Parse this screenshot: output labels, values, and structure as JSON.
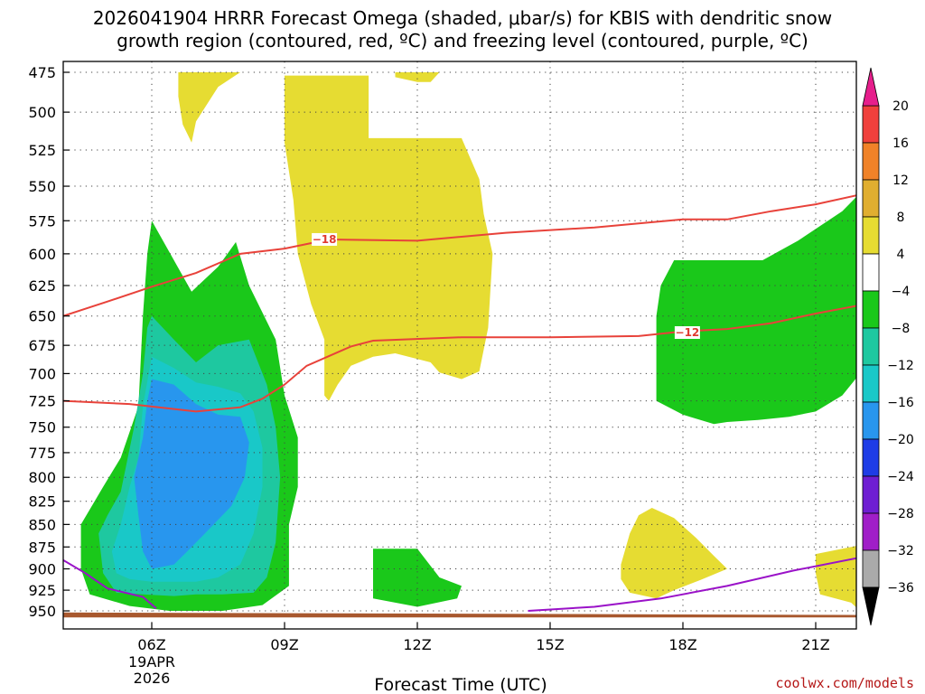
{
  "chart_data": {
    "type": "heatmap",
    "title_lines": [
      "2026041904 HRRR Forecast Omega (shaded, μbar/s) for KBIS with dendritic snow",
      "growth region (contoured, red, ºC) and freezing level (contoured, purple, ºC)"
    ],
    "xlabel": "Forecast Time (UTC)",
    "ylabel": "",
    "credit": "coolwx.com/models",
    "x_ticks": [
      {
        "label": "06Z",
        "hour": 6,
        "sub": [
          "19APR",
          "2026"
        ]
      },
      {
        "label": "09Z",
        "hour": 9
      },
      {
        "label": "12Z",
        "hour": 12
      },
      {
        "label": "15Z",
        "hour": 15
      },
      {
        "label": "18Z",
        "hour": 18
      },
      {
        "label": "21Z",
        "hour": 21
      }
    ],
    "xlim": [
      4,
      22
    ],
    "y_ticks": [
      475,
      500,
      525,
      550,
      575,
      600,
      625,
      650,
      675,
      700,
      725,
      750,
      775,
      800,
      825,
      850,
      875,
      900,
      925,
      950
    ],
    "colorbar": {
      "labels": [
        "20",
        "16",
        "12",
        "8",
        "4",
        "−4",
        "−8",
        "−12",
        "−16",
        "−20",
        "−24",
        "−28",
        "−32",
        "−36"
      ],
      "colors": [
        "#f0403c",
        "#f08228",
        "#e0ae30",
        "#e6dc32",
        "#ffffff",
        "#1ac81a",
        "#1ec8a0",
        "#19c8c8",
        "#2896ee",
        "#1e3ce6",
        "#6e1ed2",
        "#a01ec8",
        "#aaaaaa"
      ],
      "top_color": "#e61e8c",
      "bottom_color": "#000000"
    },
    "contours": {
      "dendritic": [
        {
          "label": "−18",
          "color": "#e8423a",
          "points": [
            [
              4.0,
              650
            ],
            [
              5.0,
              638
            ],
            [
              6.0,
              626
            ],
            [
              7.0,
              615
            ],
            [
              8.0,
              600
            ],
            [
              9.0,
              596
            ],
            [
              10.0,
              589
            ],
            [
              12.0,
              590
            ],
            [
              14.0,
              584
            ],
            [
              16.0,
              580
            ],
            [
              18.0,
              574
            ],
            [
              19.0,
              574
            ],
            [
              20.0,
              568
            ],
            [
              21.0,
              563
            ],
            [
              22.0,
              556
            ]
          ]
        },
        {
          "label": "−12",
          "color": "#e8423a",
          "points": [
            [
              4.0,
              725
            ],
            [
              5.5,
              728
            ],
            [
              7.0,
              735
            ],
            [
              8.0,
              731
            ],
            [
              8.5,
              723
            ],
            [
              9.0,
              710
            ],
            [
              9.5,
              693
            ],
            [
              10.5,
              676
            ],
            [
              11.0,
              671
            ],
            [
              13.0,
              668
            ],
            [
              15.0,
              668
            ],
            [
              17.0,
              667
            ],
            [
              18.0,
              663
            ],
            [
              19.0,
              661
            ],
            [
              20.0,
              656
            ],
            [
              21.0,
              648
            ],
            [
              22.0,
              641
            ]
          ]
        }
      ],
      "freezing": {
        "color": "#9a12c8",
        "segments": [
          [
            [
              4.0,
              890
            ],
            [
              4.5,
              905
            ],
            [
              5.0,
              923
            ],
            [
              5.8,
              933
            ],
            [
              6.1,
              947
            ]
          ],
          [
            [
              14.5,
              950
            ],
            [
              16.0,
              945
            ],
            [
              17.5,
              935
            ],
            [
              19.0,
              920
            ],
            [
              20.5,
              902
            ],
            [
              22.0,
              887
            ]
          ]
        ]
      }
    },
    "shaded_regions": [
      {
        "value": "4",
        "color": "#e6dc32",
        "points": [
          [
            6.6,
            475
          ],
          [
            8.0,
            475
          ],
          [
            7.5,
            484
          ],
          [
            7.0,
            506
          ],
          [
            6.9,
            520
          ],
          [
            6.7,
            508
          ],
          [
            6.6,
            490
          ]
        ]
      },
      {
        "value": "4",
        "color": "#e6dc32",
        "points": [
          [
            9.0,
            477
          ],
          [
            10.9,
            477
          ],
          [
            10.9,
            517
          ],
          [
            13.0,
            517
          ],
          [
            13.4,
            545
          ],
          [
            13.5,
            570
          ],
          [
            13.7,
            600
          ],
          [
            13.6,
            660
          ],
          [
            13.4,
            698
          ],
          [
            13.0,
            705
          ],
          [
            12.5,
            699
          ],
          [
            12.3,
            690
          ],
          [
            11.8,
            685
          ],
          [
            11.5,
            682
          ],
          [
            11.0,
            685
          ],
          [
            10.5,
            693
          ],
          [
            10.2,
            710
          ],
          [
            10.0,
            725
          ],
          [
            9.9,
            720
          ],
          [
            9.9,
            670
          ],
          [
            9.6,
            640
          ],
          [
            9.3,
            600
          ],
          [
            9.2,
            560
          ],
          [
            9.0,
            520
          ]
        ]
      },
      {
        "value": "4",
        "color": "#e6dc32",
        "points": [
          [
            11.5,
            475
          ],
          [
            12.5,
            475
          ],
          [
            12.3,
            481
          ],
          [
            12.0,
            481
          ],
          [
            11.5,
            478
          ]
        ]
      },
      {
        "value": "4",
        "color": "#e6dc32",
        "points": [
          [
            16.6,
            895
          ],
          [
            16.8,
            860
          ],
          [
            17.0,
            840
          ],
          [
            17.3,
            832
          ],
          [
            17.8,
            843
          ],
          [
            18.3,
            865
          ],
          [
            18.7,
            885
          ],
          [
            19.0,
            900
          ],
          [
            18.4,
            913
          ],
          [
            17.8,
            925
          ],
          [
            17.4,
            935
          ],
          [
            16.8,
            928
          ],
          [
            16.6,
            912
          ]
        ]
      },
      {
        "value": "4",
        "color": "#e6dc32",
        "points": [
          [
            21.0,
            883
          ],
          [
            22.0,
            873
          ],
          [
            22.0,
            950
          ],
          [
            21.8,
            940
          ],
          [
            21.1,
            930
          ],
          [
            21.0,
            905
          ]
        ]
      },
      {
        "value": "-4",
        "color": "#1ac81a",
        "points": [
          [
            6.0,
            575
          ],
          [
            6.9,
            630
          ],
          [
            7.5,
            610
          ],
          [
            7.9,
            591
          ],
          [
            8.2,
            625
          ],
          [
            8.8,
            670
          ],
          [
            9.0,
            720
          ],
          [
            9.3,
            760
          ],
          [
            9.3,
            810
          ],
          [
            9.1,
            850
          ],
          [
            9.1,
            920
          ],
          [
            8.5,
            943
          ],
          [
            7.6,
            950
          ],
          [
            6.4,
            950
          ],
          [
            5.5,
            944
          ],
          [
            4.6,
            930
          ],
          [
            4.4,
            900
          ],
          [
            4.4,
            850
          ],
          [
            4.9,
            810
          ],
          [
            5.3,
            780
          ],
          [
            5.7,
            730
          ],
          [
            5.8,
            650
          ],
          [
            5.9,
            600
          ]
        ]
      },
      {
        "value": "-4",
        "color": "#1ac81a",
        "points": [
          [
            17.5,
            625
          ],
          [
            17.8,
            605
          ],
          [
            18.9,
            605
          ],
          [
            19.8,
            605
          ],
          [
            20.6,
            590
          ],
          [
            21.6,
            568
          ],
          [
            22.0,
            555
          ],
          [
            22.0,
            700
          ],
          [
            21.6,
            720
          ],
          [
            21.0,
            735
          ],
          [
            20.4,
            740
          ],
          [
            19.7,
            743
          ],
          [
            19.0,
            745
          ],
          [
            18.7,
            747
          ],
          [
            18.0,
            738
          ],
          [
            17.4,
            725
          ],
          [
            17.4,
            650
          ]
        ]
      },
      {
        "value": "-4",
        "color": "#1ac81a",
        "points": [
          [
            11.0,
            877
          ],
          [
            12.0,
            877
          ],
          [
            12.5,
            910
          ],
          [
            13.0,
            920
          ],
          [
            12.9,
            935
          ],
          [
            12.0,
            945
          ],
          [
            11.5,
            940
          ],
          [
            11.0,
            935
          ]
        ]
      },
      {
        "value": "-8",
        "color": "#1ec8a0",
        "points": [
          [
            6.0,
            650
          ],
          [
            6.5,
            670
          ],
          [
            7.0,
            690
          ],
          [
            7.5,
            675
          ],
          [
            8.2,
            670
          ],
          [
            8.6,
            710
          ],
          [
            8.8,
            750
          ],
          [
            8.9,
            800
          ],
          [
            8.8,
            870
          ],
          [
            8.6,
            910
          ],
          [
            8.3,
            928
          ],
          [
            7.6,
            930
          ],
          [
            7.0,
            930
          ],
          [
            6.5,
            932
          ],
          [
            5.8,
            930
          ],
          [
            5.2,
            928
          ],
          [
            4.9,
            905
          ],
          [
            4.8,
            860
          ],
          [
            5.0,
            840
          ],
          [
            5.3,
            815
          ],
          [
            5.6,
            750
          ],
          [
            5.8,
            700
          ],
          [
            5.9,
            660
          ]
        ]
      },
      {
        "value": "-12",
        "color": "#19c8c8",
        "points": [
          [
            6.0,
            685
          ],
          [
            6.5,
            695
          ],
          [
            7.0,
            708
          ],
          [
            7.5,
            712
          ],
          [
            8.0,
            718
          ],
          [
            8.3,
            735
          ],
          [
            8.5,
            770
          ],
          [
            8.5,
            810
          ],
          [
            8.3,
            860
          ],
          [
            8.0,
            895
          ],
          [
            7.5,
            910
          ],
          [
            7.0,
            915
          ],
          [
            6.5,
            915
          ],
          [
            6.0,
            915
          ],
          [
            5.5,
            912
          ],
          [
            5.2,
            905
          ],
          [
            5.1,
            880
          ],
          [
            5.3,
            850
          ],
          [
            5.5,
            810
          ],
          [
            5.7,
            780
          ],
          [
            5.8,
            730
          ]
        ]
      },
      {
        "value": "-16",
        "color": "#2896ee",
        "points": [
          [
            6.0,
            705
          ],
          [
            6.5,
            710
          ],
          [
            7.0,
            728
          ],
          [
            7.5,
            738
          ],
          [
            8.0,
            740
          ],
          [
            8.2,
            765
          ],
          [
            8.1,
            800
          ],
          [
            7.8,
            830
          ],
          [
            7.2,
            860
          ],
          [
            6.8,
            880
          ],
          [
            6.5,
            895
          ],
          [
            6.0,
            900
          ],
          [
            5.8,
            880
          ],
          [
            5.7,
            840
          ],
          [
            5.6,
            800
          ],
          [
            5.8,
            760
          ],
          [
            5.9,
            725
          ]
        ]
      }
    ],
    "terrain": {
      "color": "#a8582e",
      "top_left": 952,
      "top_right": 955,
      "bottom": 958
    }
  }
}
